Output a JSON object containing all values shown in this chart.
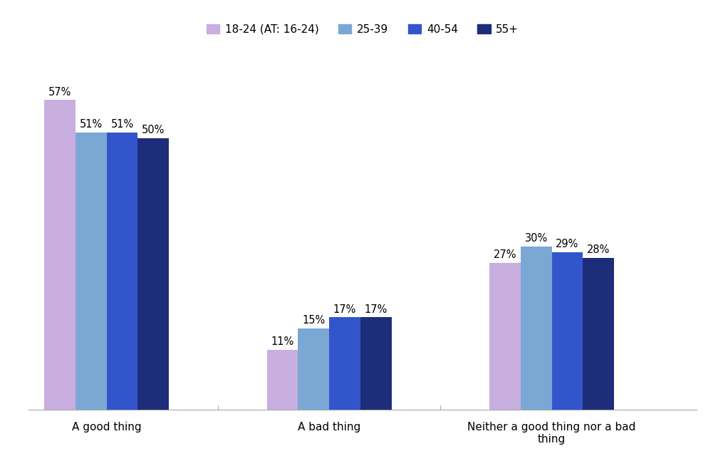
{
  "categories": [
    "A good thing",
    "A bad thing",
    "Neither a good thing nor a bad\nthing"
  ],
  "series": [
    {
      "label": "18-24 (AT: 16-24)",
      "values": [
        57,
        11,
        27
      ],
      "color": "#c9aee0"
    },
    {
      "label": "25-39",
      "values": [
        51,
        15,
        30
      ],
      "color": "#7ba7d4"
    },
    {
      "label": "40-54",
      "values": [
        51,
        17,
        29
      ],
      "color": "#3355cc"
    },
    {
      "label": "55+",
      "values": [
        50,
        17,
        28
      ],
      "color": "#1e2d7a"
    }
  ],
  "ylim": [
    0,
    65
  ],
  "bar_width": 0.14,
  "group_positions": [
    0.35,
    1.35,
    2.35
  ],
  "xlim": [
    0.0,
    3.0
  ],
  "label_fontsize": 11,
  "tick_fontsize": 11,
  "legend_fontsize": 11,
  "value_fontsize": 10.5,
  "background_color": "#ffffff"
}
